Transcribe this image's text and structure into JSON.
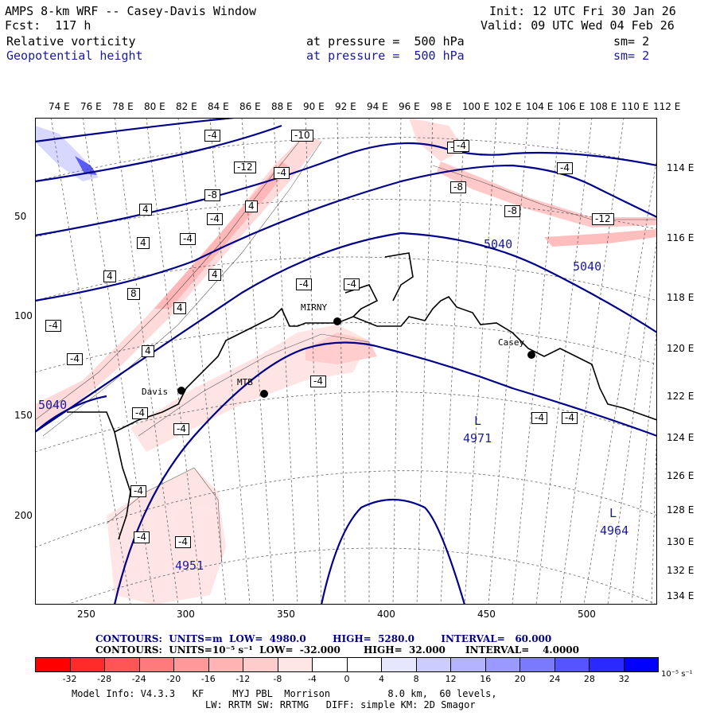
{
  "header": {
    "title": "AMPS 8-km WRF -- Casey-Davis Window",
    "fcst": "Fcst:  117 h",
    "init": "Init: 12 UTC Fri 30 Jan 26",
    "valid": "Valid: 09 UTC Wed 04 Feb 26",
    "field1": "Relative vorticity",
    "field2": "Geopotential height",
    "pressure1": "at pressure =  500 hPa",
    "pressure2": "at pressure =  500 hPa",
    "sm1": "sm= 2",
    "sm2": "sm= 2"
  },
  "map": {
    "top_lon_labels": [
      "74 E",
      "76 E",
      "78 E",
      "80 E",
      "82 E",
      "84 E",
      "86 E",
      "88 E",
      "90 E",
      "92 E",
      "94 E",
      "96 E",
      "98 E",
      "100 E",
      "102 E",
      "104 E",
      "106 E",
      "108 E",
      "110 E",
      "112 E"
    ],
    "right_lon_labels": [
      "114 E",
      "116 E",
      "118 E",
      "120 E",
      "122 E",
      "124 E",
      "126 E",
      "128 E",
      "130 E",
      "132 E",
      "134 E"
    ],
    "y_ticks": [
      "50",
      "100",
      "150",
      "200"
    ],
    "x_ticks": [
      "250",
      "300",
      "350",
      "400",
      "450",
      "500"
    ],
    "stations": [
      "MIRNY",
      "Casey",
      "Davis",
      "MTB"
    ],
    "vort_labels": [
      "-4",
      "-8",
      "-12",
      "-10",
      "4",
      "8",
      "-4",
      "-8",
      "-12",
      "-4",
      "4",
      "-4",
      "-8",
      "-4",
      "4",
      "-4",
      "4",
      "4",
      "4",
      "8",
      "4",
      "-4",
      "-4",
      "-4",
      "-4",
      "-4",
      "-4",
      "-4",
      "-4",
      "-4",
      "-4",
      "-4",
      "-4",
      "-4"
    ],
    "height_labels": [
      "5040",
      "5040",
      "5040",
      "4971",
      "4964",
      "4951"
    ],
    "low_marks": [
      "L",
      "L"
    ]
  },
  "contour_info": {
    "line1": "CONTOURS:  UNITS=m  LOW=  4980.0        HIGH=  5280.0        INTERVAL=   60.000",
    "line2": "CONTOURS:  UNITS=10⁻⁵ s⁻¹  LOW=  -32.000       HIGH=  32.000      INTERVAL=    4.0000"
  },
  "colorbar": {
    "colors": [
      "#ff0000",
      "#ff2a2a",
      "#ff5555",
      "#ff7a7a",
      "#ff9999",
      "#ffb3b3",
      "#ffcccc",
      "#ffe6e6",
      "#ffffff",
      "#ffffff",
      "#e6e6ff",
      "#ccccff",
      "#b3b3ff",
      "#9999ff",
      "#7a7aff",
      "#5555ff",
      "#2a2aff",
      "#0000ff"
    ],
    "labels": [
      "-32",
      "-28",
      "-24",
      "-20",
      "-16",
      "-12",
      "-8",
      "-4",
      "0",
      "4",
      "8",
      "12",
      "16",
      "20",
      "24",
      "28",
      "32"
    ],
    "unit": "10⁻⁵ s⁻¹"
  },
  "footer": {
    "line1": "Model Info: V4.3.3   KF     MYJ PBL  Morrison          8.0 km,  60 levels,",
    "line2": "LW: RRTM SW: RRTMG   DIFF: simple KM: 2D Smagor"
  }
}
